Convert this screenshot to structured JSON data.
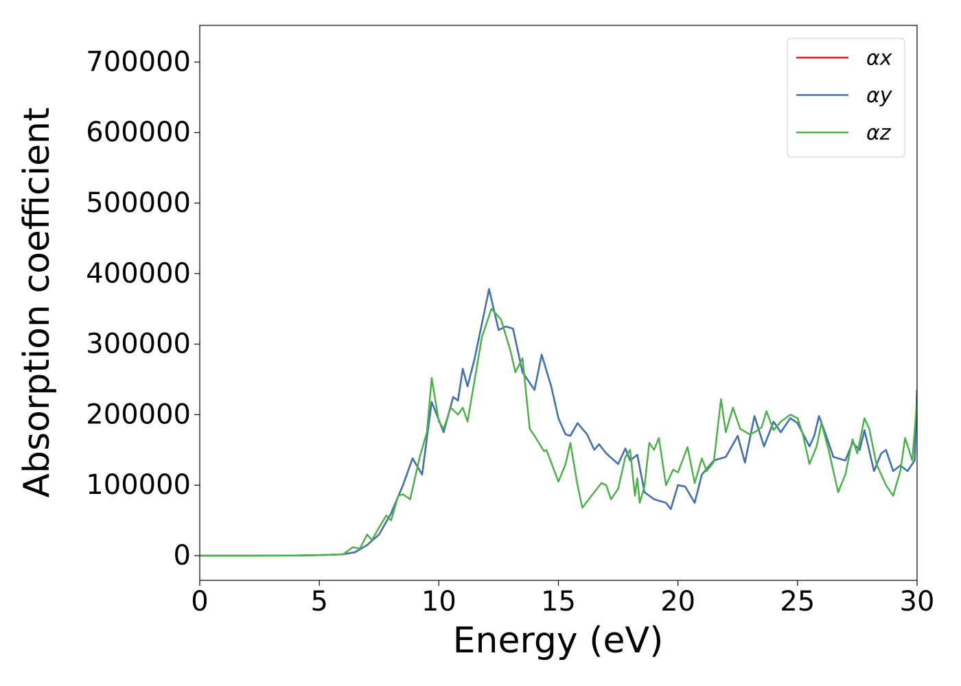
{
  "chart_data": {
    "type": "line",
    "x_label": "Energy (eV)",
    "y_label": "Absorption coefficient",
    "xlim": [
      0,
      30
    ],
    "xticks": [
      0,
      5,
      10,
      15,
      20,
      25,
      30
    ],
    "ylim": [
      -35000,
      752000
    ],
    "yticks": [
      0,
      100000,
      200000,
      300000,
      400000,
      500000,
      600000,
      700000
    ],
    "grid": false,
    "legend": "upper right",
    "series": [
      {
        "name": "αx",
        "color": "#e41a1c",
        "x": [
          0,
          2,
          4,
          5,
          6,
          6.5,
          7,
          7.5,
          8,
          8.5,
          8.9,
          9.3,
          9.7,
          10.2,
          10.6,
          10.8,
          11,
          11.2,
          11.5,
          12.1,
          12.5,
          12.8,
          13.1,
          13.5,
          14,
          14.3,
          14.7,
          15,
          15.3,
          15.5,
          15.8,
          16.2,
          16.5,
          16.7,
          17,
          17.5,
          17.8,
          18,
          18.3,
          18.6,
          19,
          19.5,
          19.7,
          20,
          20.3,
          20.7,
          21,
          21.5,
          22,
          22.5,
          22.8,
          23.2,
          23.6,
          24,
          24.3,
          24.7,
          25,
          25.5,
          25.7,
          25.9,
          26.2,
          26.5,
          27,
          27.3,
          27.6,
          27.8,
          28.2,
          28.5,
          28.7,
          29,
          29.3,
          29.6,
          29.9,
          30
        ],
        "values": [
          0,
          0,
          300,
          800,
          2000,
          5000,
          15000,
          30000,
          60000,
          100000,
          138000,
          115000,
          218000,
          175000,
          225000,
          220000,
          265000,
          240000,
          280000,
          378000,
          320000,
          325000,
          322000,
          260000,
          235000,
          285000,
          240000,
          195000,
          172000,
          170000,
          188000,
          172000,
          150000,
          158000,
          145000,
          130000,
          152000,
          135000,
          143000,
          90000,
          80000,
          75000,
          66000,
          100000,
          98000,
          75000,
          115000,
          135000,
          140000,
          170000,
          132000,
          198000,
          155000,
          190000,
          175000,
          195000,
          188000,
          155000,
          170000,
          198000,
          170000,
          140000,
          135000,
          160000,
          150000,
          178000,
          120000,
          145000,
          150000,
          120000,
          128000,
          120000,
          135000,
          235000
        ]
      },
      {
        "name": "αy",
        "color": "#3a76b0",
        "x": [
          0,
          2,
          4,
          5,
          6,
          6.5,
          7,
          7.5,
          8,
          8.5,
          8.9,
          9.3,
          9.7,
          10.2,
          10.6,
          10.8,
          11,
          11.2,
          11.5,
          12.1,
          12.5,
          12.8,
          13.1,
          13.5,
          14,
          14.3,
          14.7,
          15,
          15.3,
          15.5,
          15.8,
          16.2,
          16.5,
          16.7,
          17,
          17.5,
          17.8,
          18,
          18.3,
          18.6,
          19,
          19.5,
          19.7,
          20,
          20.3,
          20.7,
          21,
          21.5,
          22,
          22.5,
          22.8,
          23.2,
          23.6,
          24,
          24.3,
          24.7,
          25,
          25.5,
          25.7,
          25.9,
          26.2,
          26.5,
          27,
          27.3,
          27.6,
          27.8,
          28.2,
          28.5,
          28.7,
          29,
          29.3,
          29.6,
          29.9,
          30
        ],
        "values": [
          0,
          0,
          300,
          800,
          2000,
          5000,
          15000,
          30000,
          60000,
          100000,
          138000,
          115000,
          218000,
          175000,
          225000,
          220000,
          265000,
          240000,
          280000,
          378000,
          320000,
          325000,
          322000,
          260000,
          235000,
          285000,
          240000,
          195000,
          172000,
          170000,
          188000,
          172000,
          150000,
          158000,
          145000,
          130000,
          152000,
          135000,
          143000,
          90000,
          80000,
          75000,
          66000,
          100000,
          98000,
          75000,
          115000,
          135000,
          140000,
          170000,
          132000,
          198000,
          155000,
          190000,
          175000,
          195000,
          188000,
          155000,
          170000,
          198000,
          170000,
          140000,
          135000,
          160000,
          150000,
          178000,
          120000,
          145000,
          150000,
          120000,
          128000,
          120000,
          135000,
          235000
        ]
      },
      {
        "name": "αz",
        "color": "#4daf4a",
        "x": [
          0,
          2,
          4,
          5,
          6,
          6.4,
          6.7,
          7,
          7.2,
          7.5,
          7.8,
          8,
          8.3,
          8.5,
          8.8,
          9.2,
          9.5,
          9.7,
          10,
          10.2,
          10.5,
          10.8,
          11,
          11.2,
          11.5,
          11.8,
          12.2,
          12.6,
          13,
          13.2,
          13.5,
          13.8,
          14,
          14.4,
          14.5,
          15,
          15.3,
          15.5,
          15.8,
          16,
          16.5,
          16.8,
          17,
          17.2,
          17.5,
          17.8,
          18,
          18.2,
          18.3,
          18.4,
          18.6,
          18.8,
          19,
          19.2,
          19.5,
          19.8,
          20,
          20.4,
          20.7,
          21,
          21.2,
          21.5,
          21.8,
          22,
          22.3,
          22.6,
          23,
          23.2,
          23.5,
          23.7,
          24,
          24.3,
          24.7,
          25,
          25.2,
          25.5,
          25.8,
          26,
          26.3,
          26.7,
          27,
          27.3,
          27.5,
          27.8,
          28,
          28.3,
          28.7,
          29,
          29.3,
          29.5,
          29.8,
          30
        ],
        "values": [
          0,
          0,
          300,
          800,
          2000,
          12000,
          10000,
          30000,
          22000,
          40000,
          57000,
          50000,
          85000,
          87000,
          80000,
          140000,
          175000,
          252000,
          190000,
          180000,
          210000,
          200000,
          210000,
          190000,
          250000,
          310000,
          350000,
          335000,
          290000,
          260000,
          280000,
          180000,
          170000,
          148000,
          150000,
          105000,
          130000,
          160000,
          100000,
          68000,
          90000,
          103000,
          100000,
          80000,
          95000,
          140000,
          150000,
          85000,
          110000,
          75000,
          98000,
          160000,
          150000,
          167000,
          100000,
          122000,
          118000,
          154000,
          103000,
          138000,
          120000,
          133000,
          222000,
          175000,
          210000,
          180000,
          172000,
          175000,
          182000,
          205000,
          178000,
          190000,
          200000,
          195000,
          175000,
          130000,
          155000,
          188000,
          150000,
          90000,
          115000,
          165000,
          145000,
          195000,
          180000,
          130000,
          100000,
          85000,
          120000,
          167000,
          135000,
          220000
        ]
      }
    ]
  }
}
